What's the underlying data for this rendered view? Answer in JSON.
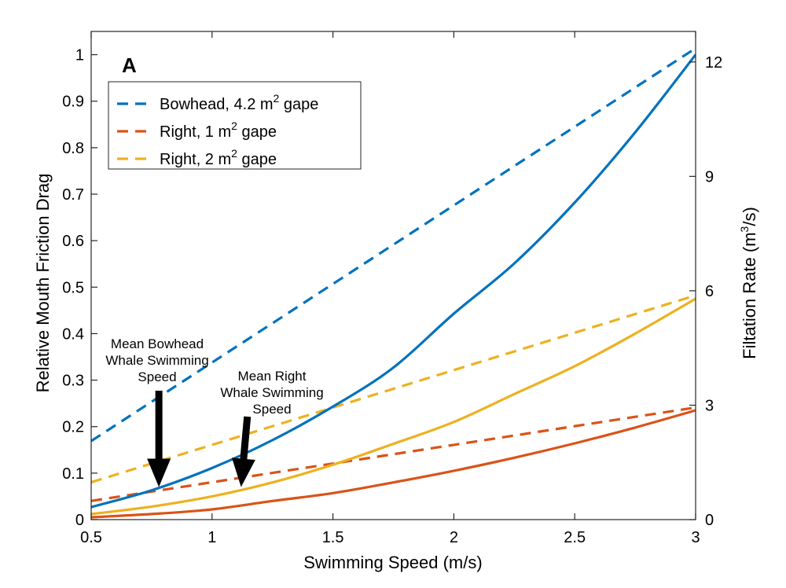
{
  "chart_data": {
    "type": "line",
    "panel_label": "A",
    "xlabel": "Swimming Speed (m/s)",
    "ylabel_left": "Relative Mouth Friction Drag",
    "ylabel_right": "Filtation Rate (m",
    "ylabel_right_sup": "3",
    "ylabel_right_end": "/s)",
    "xlim": [
      0.5,
      3
    ],
    "ylim_left": [
      0,
      1.05
    ],
    "ylim_right": [
      0,
      12.8
    ],
    "x_ticks": [
      0.5,
      1,
      1.5,
      2,
      2.5,
      3
    ],
    "x_tick_labels": [
      "0.5",
      "1",
      "1.5",
      "2",
      "2.5",
      "3"
    ],
    "y_left_ticks": [
      0,
      0.1,
      0.2,
      0.3,
      0.4,
      0.5,
      0.6,
      0.7,
      0.8,
      0.9,
      1
    ],
    "y_left_tick_labels": [
      "0",
      "0.1",
      "0.2",
      "0.3",
      "0.4",
      "0.5",
      "0.6",
      "0.7",
      "0.8",
      "0.9",
      "1"
    ],
    "y_right_ticks": [
      0,
      3,
      6,
      9,
      12
    ],
    "y_right_tick_labels": [
      "0",
      "3",
      "6",
      "9",
      "12"
    ],
    "legend": {
      "placement": "top-left",
      "entries": [
        {
          "label": "Bowhead, 4.2 m",
          "sup": "2",
          "suffix": " gape",
          "color": "#0072BD"
        },
        {
          "label": "Right, 1 m",
          "sup": "2",
          "suffix": " gape",
          "color": "#D95319"
        },
        {
          "label": "Right, 2 m",
          "sup": "2",
          "suffix": " gape",
          "color": "#EDB120"
        }
      ]
    },
    "series": [
      {
        "color": "#0072BD",
        "style": "dashed",
        "axis": "right",
        "x": [
          0.5,
          1,
          1.5,
          2,
          2.5,
          3
        ],
        "y": [
          2.06,
          4.12,
          6.18,
          8.24,
          10.3,
          12.36
        ]
      },
      {
        "color": "#D95319",
        "style": "dashed",
        "axis": "right",
        "x": [
          0.5,
          1,
          1.5,
          2,
          2.5,
          3
        ],
        "y": [
          0.49,
          0.98,
          1.47,
          1.96,
          2.45,
          2.94
        ]
      },
      {
        "color": "#EDB120",
        "style": "dashed",
        "axis": "right",
        "x": [
          0.5,
          1,
          1.5,
          2,
          2.5,
          3
        ],
        "y": [
          0.98,
          1.96,
          2.94,
          3.92,
          4.9,
          5.88
        ]
      },
      {
        "color": "#0072BD",
        "style": "solid",
        "axis": "left",
        "x": [
          0.5,
          0.75,
          1,
          1.25,
          1.5,
          1.75,
          2,
          2.25,
          2.5,
          2.75,
          3
        ],
        "y": [
          0.027,
          0.063,
          0.111,
          0.171,
          0.243,
          0.327,
          0.443,
          0.551,
          0.682,
          0.833,
          1.0
        ]
      },
      {
        "color": "#EDB120",
        "style": "solid",
        "axis": "left",
        "x": [
          0.5,
          0.75,
          1,
          1.25,
          1.5,
          1.75,
          2,
          2.25,
          2.5,
          2.75,
          3
        ],
        "y": [
          0.012,
          0.028,
          0.05,
          0.08,
          0.118,
          0.163,
          0.21,
          0.27,
          0.33,
          0.4,
          0.475
        ]
      },
      {
        "color": "#D95319",
        "style": "solid",
        "axis": "left",
        "x": [
          0.5,
          0.75,
          1,
          1.25,
          1.5,
          1.75,
          2,
          2.25,
          2.5,
          2.75,
          3
        ],
        "y": [
          0.005,
          0.012,
          0.022,
          0.04,
          0.057,
          0.08,
          0.105,
          0.133,
          0.164,
          0.198,
          0.235
        ]
      }
    ],
    "annotations": [
      {
        "lines": [
          "Mean Bowhead",
          "Whale Swimming",
          "Speed"
        ],
        "x": 0.78,
        "arrow_tip_y": 0.065
      },
      {
        "lines": [
          "Mean Right",
          "Whale Swimming",
          "Speed"
        ],
        "x": 1.12,
        "arrow_tip_y": 0.065
      }
    ]
  }
}
